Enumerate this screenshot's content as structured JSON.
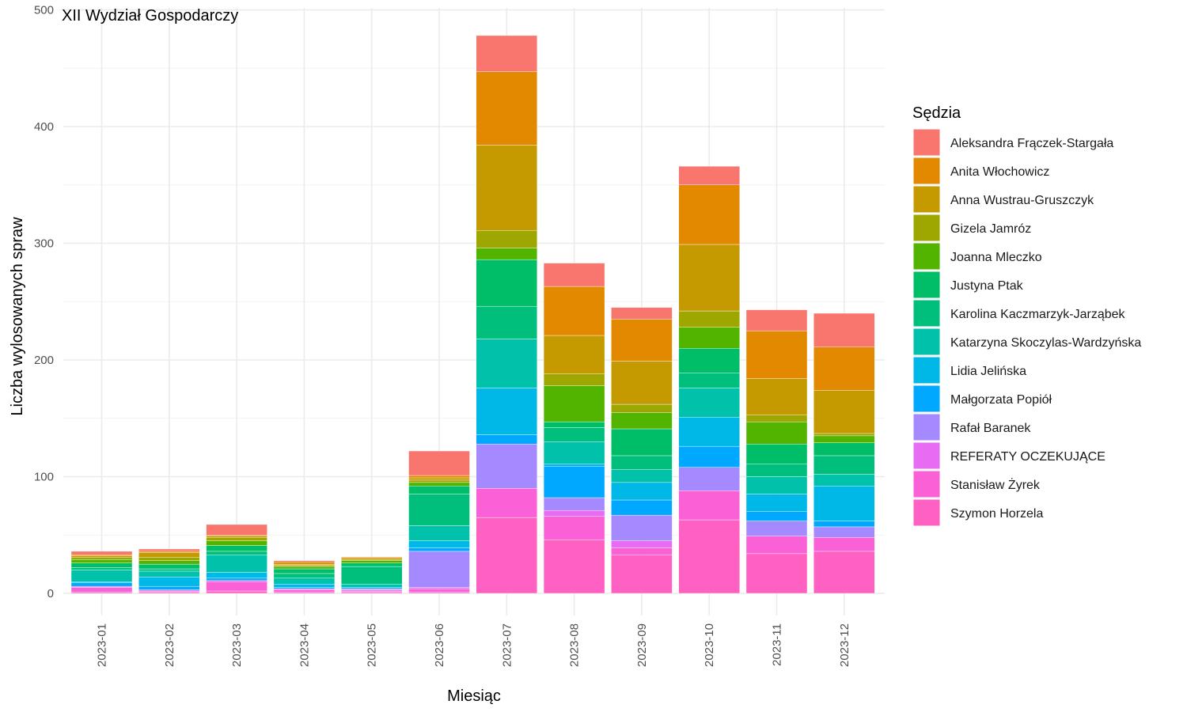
{
  "chart_data": {
    "type": "bar",
    "stacked": true,
    "title": "XII Wydział Gospodarczy",
    "xlabel": "Miesiąc",
    "ylabel": "Liczba wylosowanych spraw",
    "ylim": [
      0,
      500
    ],
    "yticks": [
      0,
      100,
      200,
      300,
      400,
      500
    ],
    "grid": true,
    "legend_title": "Sędzia",
    "legend_position": "right",
    "categories": [
      "2023-01",
      "2023-02",
      "2023-03",
      "2023-04",
      "2023-05",
      "2023-06",
      "2023-07",
      "2023-08",
      "2023-09",
      "2023-10",
      "2023-11",
      "2023-12"
    ],
    "series": [
      {
        "name": "Szymon Horzela",
        "color": "#FF61C3",
        "values": [
          1,
          1,
          2,
          1,
          1,
          1,
          65,
          46,
          33,
          63,
          34,
          36
        ]
      },
      {
        "name": "Stanisław Żyrek",
        "color": "#FB61D7",
        "values": [
          4,
          1,
          8,
          2,
          1,
          3,
          25,
          20,
          6,
          25,
          15,
          12
        ]
      },
      {
        "name": "REFERATY OCZEKUJĄCE",
        "color": "#E76BF3",
        "values": [
          1,
          1,
          1,
          1,
          1,
          1,
          0,
          5,
          6,
          0,
          0,
          0
        ]
      },
      {
        "name": "Rafał Baranek",
        "color": "#A58AFF",
        "values": [
          0,
          0,
          0,
          0,
          1,
          31,
          38,
          11,
          22,
          20,
          13,
          9
        ]
      },
      {
        "name": "Małgorzata Popiół",
        "color": "#00A9FF",
        "values": [
          3,
          3,
          2,
          1,
          1,
          3,
          8,
          27,
          13,
          18,
          8,
          5
        ]
      },
      {
        "name": "Lidia Jelińska",
        "color": "#00B8E7",
        "values": [
          1,
          8,
          5,
          3,
          0,
          6,
          40,
          2,
          15,
          25,
          15,
          30
        ]
      },
      {
        "name": "Katarzyna Skoczylas-Wardzyńska",
        "color": "#00C1A9",
        "values": [
          10,
          5,
          15,
          5,
          3,
          13,
          42,
          19,
          11,
          25,
          15,
          10
        ]
      },
      {
        "name": "Karolina Kaczmarzyk-Jarząbek",
        "color": "#00BF7D",
        "values": [
          2,
          2,
          3,
          4,
          15,
          27,
          28,
          12,
          12,
          13,
          11,
          16
        ]
      },
      {
        "name": "Justyna Ptak",
        "color": "#00BE67",
        "values": [
          4,
          4,
          5,
          4,
          3,
          7,
          40,
          5,
          23,
          21,
          17,
          11
        ]
      },
      {
        "name": "Joanna Mleczko",
        "color": "#53B400",
        "values": [
          3,
          3,
          4,
          2,
          2,
          3,
          10,
          31,
          14,
          18,
          19,
          6
        ]
      },
      {
        "name": "Gizela Jamróz",
        "color": "#9DA700",
        "values": [
          2,
          3,
          3,
          1,
          1,
          2,
          15,
          10,
          7,
          14,
          6,
          2
        ]
      },
      {
        "name": "Anna Wustrau-Gruszczyk",
        "color": "#C49A00",
        "values": [
          1,
          4,
          1,
          1,
          1,
          2,
          73,
          33,
          37,
          57,
          31,
          37
        ]
      },
      {
        "name": "Anita Włochowicz",
        "color": "#E38900",
        "values": [
          1,
          1,
          1,
          2,
          1,
          2,
          63,
          42,
          36,
          51,
          41,
          37
        ]
      },
      {
        "name": "Aleksandra Frączek-Stargała",
        "color": "#F8766D",
        "values": [
          3,
          2,
          9,
          1,
          0,
          21,
          31,
          20,
          10,
          16,
          18,
          29
        ]
      }
    ]
  }
}
